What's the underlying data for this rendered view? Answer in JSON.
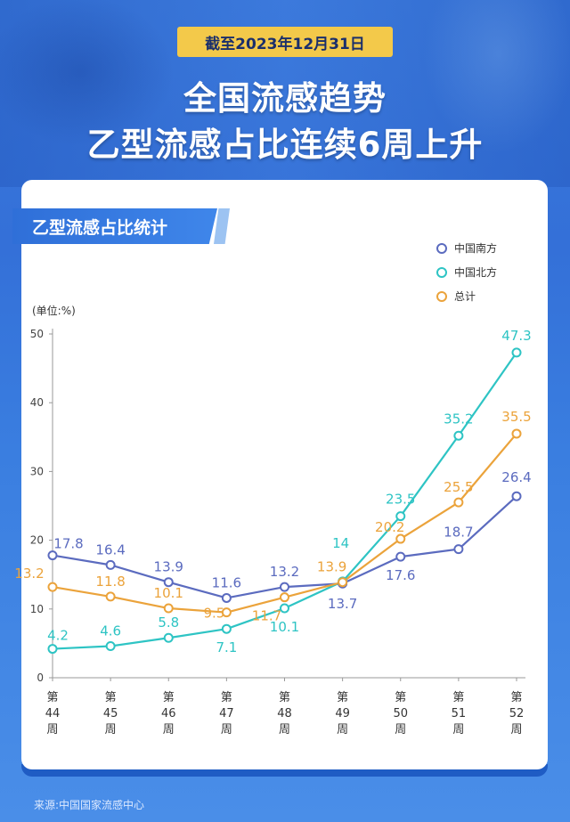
{
  "header": {
    "date_badge": "截至2023年12月31日",
    "title_line1": "全国流感趋势",
    "title_line2": "乙型流感占比连续6周上升"
  },
  "section_title": "乙型流感占比统计",
  "source": "来源:中国国家流感中心",
  "colors": {
    "south": "#5b6bbf",
    "north": "#2ec4c4",
    "total": "#eba33b",
    "axis": "#999999"
  },
  "chart_data": {
    "type": "line",
    "unit_label": "(单位:%)",
    "categories": [
      [
        "第",
        "44",
        "周"
      ],
      [
        "第",
        "45",
        "周"
      ],
      [
        "第",
        "46",
        "周"
      ],
      [
        "第",
        "47",
        "周"
      ],
      [
        "第",
        "48",
        "周"
      ],
      [
        "第",
        "49",
        "周"
      ],
      [
        "第",
        "50",
        "周"
      ],
      [
        "第",
        "51",
        "周"
      ],
      [
        "第",
        "52",
        "周"
      ]
    ],
    "ylim": [
      0,
      50
    ],
    "yticks": [
      0,
      10,
      20,
      30,
      40,
      50
    ],
    "legend_position": "top-right",
    "series": [
      {
        "name": "中国南方",
        "color": "#5b6bbf",
        "values": [
          17.8,
          16.4,
          13.9,
          11.6,
          13.2,
          13.7,
          17.6,
          18.7,
          26.4
        ],
        "labels": [
          "17.8",
          "16.4",
          "13.9",
          "11.6",
          "13.2",
          "13.7",
          "17.6",
          "18.7",
          "26.4"
        ]
      },
      {
        "name": "中国北方",
        "color": "#2ec4c4",
        "values": [
          4.2,
          4.6,
          5.8,
          7.1,
          10.1,
          14,
          23.5,
          35.2,
          47.3
        ],
        "labels": [
          "4.2",
          "4.6",
          "5.8",
          "7.1",
          "10.1",
          "14",
          "23.5",
          "35.2",
          "47.3"
        ]
      },
      {
        "name": "总计",
        "color": "#eba33b",
        "values": [
          13.2,
          11.8,
          10.1,
          9.5,
          11.7,
          13.9,
          20.2,
          25.5,
          35.5
        ],
        "labels": [
          "13.2",
          "11.8",
          "10.1",
          "9.5",
          "11.7",
          "13.9",
          "20.2",
          "25.5",
          "35.5"
        ]
      }
    ]
  }
}
